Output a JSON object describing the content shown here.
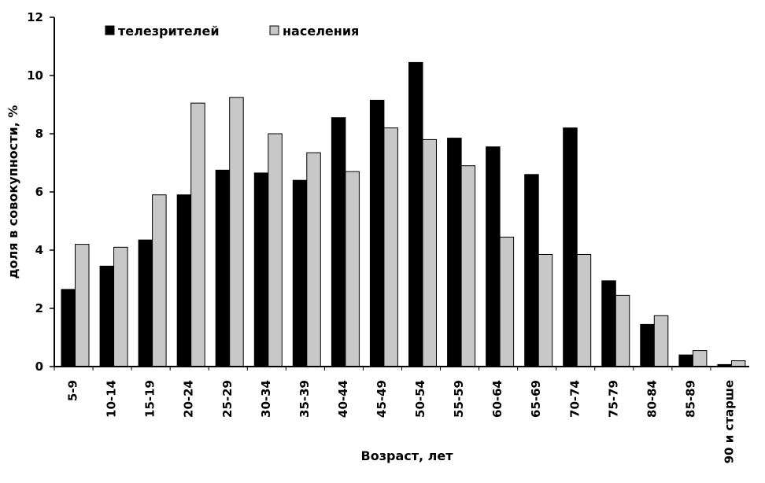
{
  "chart_data": {
    "type": "bar",
    "title": "",
    "xlabel": "Возраст, лет",
    "ylabel": "доля в совокупности, %",
    "ylim": [
      0,
      12
    ],
    "yticks": [
      "0",
      "2",
      "4",
      "6",
      "8",
      "10",
      "12"
    ],
    "grid": false,
    "legend_position": "top",
    "categories": [
      "5-9",
      "10-14",
      "15-19",
      "20-24",
      "25-29",
      "30-34",
      "35-39",
      "40-44",
      "45-49",
      "50-54",
      "55-59",
      "60-64",
      "65-69",
      "70-74",
      "75-79",
      "80-84",
      "85-89",
      "90 и старше"
    ],
    "series": [
      {
        "name": "телезрителей",
        "color": "#000000",
        "values": [
          2.65,
          3.45,
          4.35,
          5.9,
          6.75,
          6.65,
          6.4,
          8.55,
          9.15,
          10.45,
          7.85,
          7.55,
          6.6,
          8.2,
          2.95,
          1.45,
          0.4,
          0.07
        ]
      },
      {
        "name": "населения",
        "color": "#c8c8c8",
        "values": [
          4.2,
          4.1,
          5.9,
          9.05,
          9.25,
          8.0,
          7.35,
          6.7,
          8.2,
          7.8,
          6.9,
          4.45,
          3.85,
          3.85,
          2.45,
          1.75,
          0.55,
          0.2
        ]
      }
    ]
  }
}
